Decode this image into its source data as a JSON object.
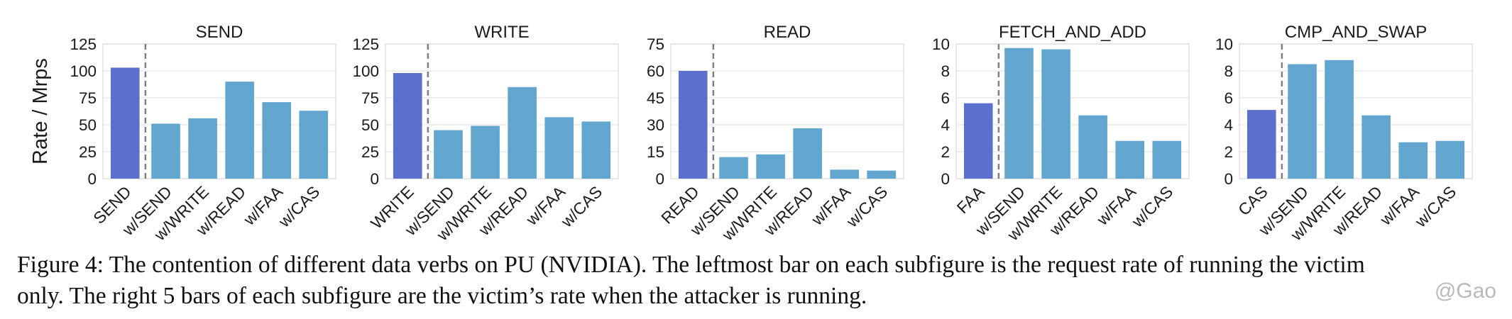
{
  "chart_data": [
    {
      "type": "bar",
      "title": "SEND",
      "ylabel": "Rate / Mrps",
      "categories": [
        "SEND",
        "w/SEND",
        "w/WRITE",
        "w/READ",
        "w/FAA",
        "w/CAS"
      ],
      "values": [
        103,
        51,
        56,
        90,
        71,
        63
      ],
      "ylim": [
        0,
        125
      ],
      "yticks": [
        0,
        25,
        50,
        75,
        100,
        125
      ]
    },
    {
      "type": "bar",
      "title": "WRITE",
      "ylabel": "",
      "categories": [
        "WRITE",
        "w/SEND",
        "w/WRITE",
        "w/READ",
        "w/FAA",
        "w/CAS"
      ],
      "values": [
        98,
        45,
        49,
        85,
        57,
        53
      ],
      "ylim": [
        0,
        125
      ],
      "yticks": [
        0,
        25,
        50,
        75,
        100,
        125
      ]
    },
    {
      "type": "bar",
      "title": "READ",
      "ylabel": "",
      "categories": [
        "READ",
        "w/SEND",
        "w/WRITE",
        "w/READ",
        "w/FAA",
        "w/CAS"
      ],
      "values": [
        60,
        12,
        13.5,
        28,
        5,
        4.5
      ],
      "ylim": [
        0,
        75
      ],
      "yticks": [
        0,
        15,
        30,
        45,
        60,
        75
      ]
    },
    {
      "type": "bar",
      "title": "FETCH_AND_ADD",
      "ylabel": "",
      "categories": [
        "FAA",
        "w/SEND",
        "w/WRITE",
        "w/READ",
        "w/FAA",
        "w/CAS"
      ],
      "values": [
        5.6,
        9.7,
        9.6,
        4.7,
        2.8,
        2.8
      ],
      "ylim": [
        0,
        10
      ],
      "yticks": [
        0,
        2,
        4,
        6,
        8,
        10
      ]
    },
    {
      "type": "bar",
      "title": "CMP_AND_SWAP",
      "ylabel": "",
      "categories": [
        "CAS",
        "w/SEND",
        "w/WRITE",
        "w/READ",
        "w/FAA",
        "w/CAS"
      ],
      "values": [
        5.1,
        8.5,
        8.8,
        4.7,
        2.7,
        2.8
      ],
      "ylim": [
        0,
        10
      ],
      "yticks": [
        0,
        2,
        4,
        6,
        8,
        10
      ]
    }
  ],
  "colors": {
    "baseline_bar": "#5b6fce",
    "contention_bar": "#62a6d0",
    "divider": "#808080",
    "grid": "#e3e3e3"
  },
  "caption": {
    "line1": "Figure 4: The contention of different data verbs on PU (NVIDIA). The leftmost bar on each subfigure is the request rate of running the victim",
    "line2": "only. The right 5 bars of each subfigure are the victim’s rate when the attacker is running."
  },
  "watermark": "@Gao"
}
